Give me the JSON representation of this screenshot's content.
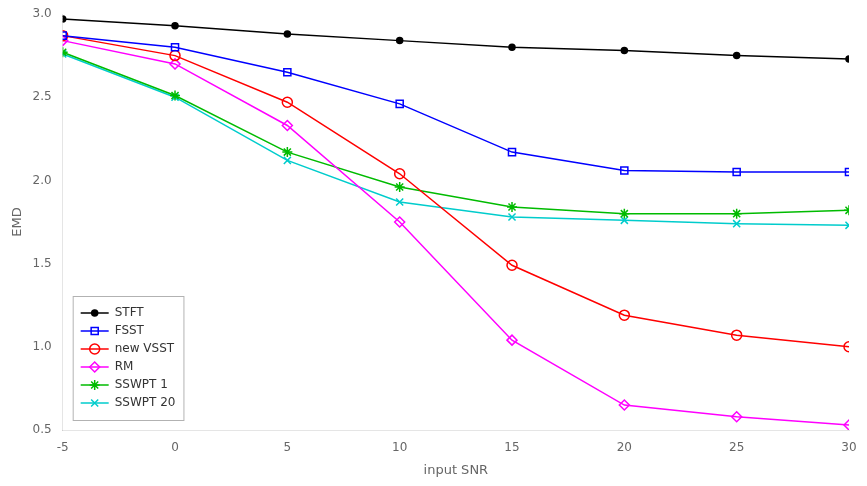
{
  "chart_data": {
    "type": "line",
    "x_label": "input SNR",
    "y_label": "EMD",
    "x": [
      -5,
      0,
      5,
      10,
      15,
      20,
      25,
      30
    ],
    "series": [
      {
        "name": "STFT",
        "color": "#000000",
        "marker": "point",
        "values": [
          2.97,
          2.93,
          2.88,
          2.84,
          2.8,
          2.78,
          2.75,
          2.73
        ]
      },
      {
        "name": "FSST",
        "color": "#0000ff",
        "marker": "square",
        "values": [
          2.87,
          2.8,
          2.65,
          2.46,
          2.17,
          2.06,
          2.05,
          2.05
        ]
      },
      {
        "name": "new VSST",
        "color": "#ff0000",
        "marker": "circle",
        "values": [
          2.87,
          2.75,
          2.47,
          2.04,
          1.49,
          1.19,
          1.07,
          1.0
        ]
      },
      {
        "name": "RM",
        "color": "#ff00ff",
        "marker": "diamond",
        "values": [
          2.84,
          2.7,
          2.33,
          1.75,
          1.04,
          0.65,
          0.58,
          0.53
        ]
      },
      {
        "name": "SSWPT 1",
        "color": "#00bb00",
        "marker": "star",
        "values": [
          2.77,
          2.51,
          2.17,
          1.96,
          1.84,
          1.8,
          1.8,
          1.82
        ]
      },
      {
        "name": "SSWPT 20",
        "color": "#00cccc",
        "marker": "x",
        "values": [
          2.76,
          2.5,
          2.12,
          1.87,
          1.78,
          1.76,
          1.74,
          1.73
        ]
      }
    ],
    "xlim": [
      -5,
      30
    ],
    "ylim": [
      0.5,
      3.0
    ],
    "xticks": [
      -5,
      0,
      5,
      10,
      15,
      20,
      25,
      30
    ],
    "yticks": [
      0.5,
      1.0,
      1.5,
      2.0,
      2.5,
      3.0
    ],
    "grid": false,
    "legend": "lower left"
  }
}
